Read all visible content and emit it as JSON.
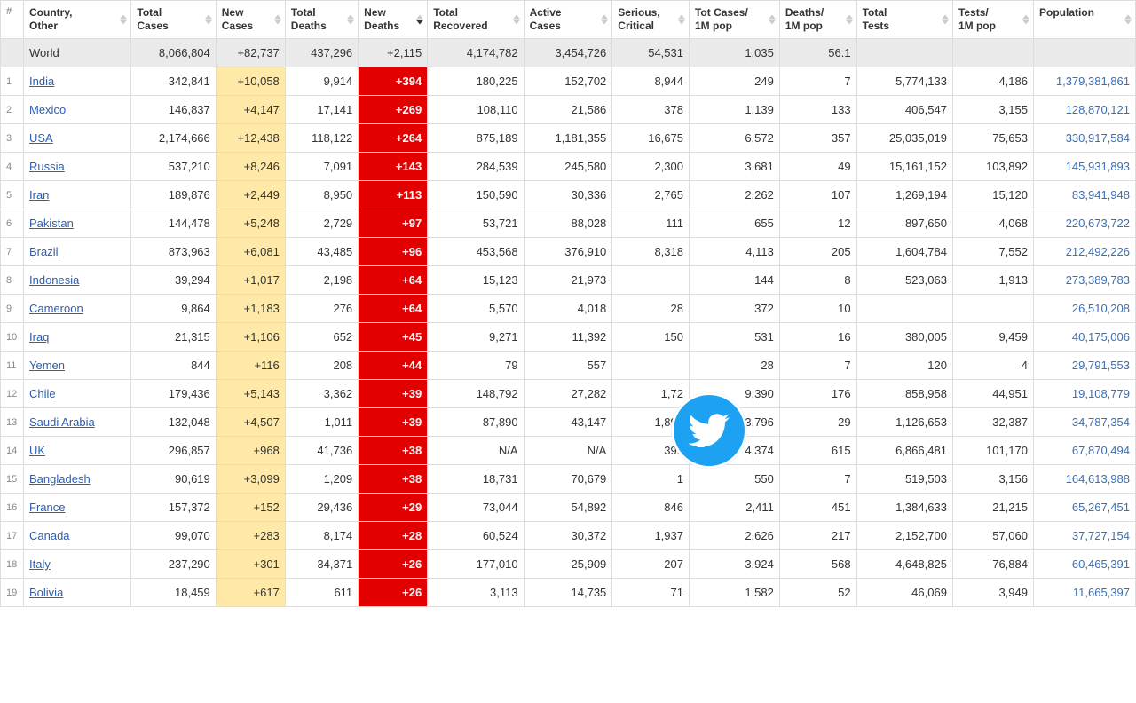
{
  "columns": {
    "idx": "#",
    "country": "Country,\nOther",
    "totalCases": "Total\nCases",
    "newCases": "New\nCases",
    "totalDeaths": "Total\nDeaths",
    "newDeaths": "New\nDeaths",
    "totalRecovered": "Total\nRecovered",
    "activeCases": "Active\nCases",
    "serious": "Serious,\nCritical",
    "casesPer1M": "Tot Cases/\n1M pop",
    "deathsPer1M": "Deaths/\n1M pop",
    "totalTests": "Total\nTests",
    "testsPer1M": "Tests/\n1M pop",
    "population": "Population"
  },
  "world": {
    "label": "World",
    "totalCases": "8,066,804",
    "newCases": "+82,737",
    "totalDeaths": "437,296",
    "newDeaths": "+2,115",
    "totalRecovered": "4,174,782",
    "activeCases": "3,454,726",
    "serious": "54,531",
    "casesPer1M": "1,035",
    "deathsPer1M": "56.1",
    "totalTests": "",
    "testsPer1M": "",
    "population": ""
  },
  "rows": [
    {
      "idx": "1",
      "country": "India",
      "totalCases": "342,841",
      "newCases": "+10,058",
      "totalDeaths": "9,914",
      "newDeaths": "+394",
      "totalRecovered": "180,225",
      "activeCases": "152,702",
      "serious": "8,944",
      "casesPer1M": "249",
      "deathsPer1M": "7",
      "totalTests": "5,774,133",
      "testsPer1M": "4,186",
      "population": "1,379,381,861"
    },
    {
      "idx": "2",
      "country": "Mexico",
      "totalCases": "146,837",
      "newCases": "+4,147",
      "totalDeaths": "17,141",
      "newDeaths": "+269",
      "totalRecovered": "108,110",
      "activeCases": "21,586",
      "serious": "378",
      "casesPer1M": "1,139",
      "deathsPer1M": "133",
      "totalTests": "406,547",
      "testsPer1M": "3,155",
      "population": "128,870,121"
    },
    {
      "idx": "3",
      "country": "USA",
      "totalCases": "2,174,666",
      "newCases": "+12,438",
      "totalDeaths": "118,122",
      "newDeaths": "+264",
      "totalRecovered": "875,189",
      "activeCases": "1,181,355",
      "serious": "16,675",
      "casesPer1M": "6,572",
      "deathsPer1M": "357",
      "totalTests": "25,035,019",
      "testsPer1M": "75,653",
      "population": "330,917,584"
    },
    {
      "idx": "4",
      "country": "Russia",
      "totalCases": "537,210",
      "newCases": "+8,246",
      "totalDeaths": "7,091",
      "newDeaths": "+143",
      "totalRecovered": "284,539",
      "activeCases": "245,580",
      "serious": "2,300",
      "casesPer1M": "3,681",
      "deathsPer1M": "49",
      "totalTests": "15,161,152",
      "testsPer1M": "103,892",
      "population": "145,931,893"
    },
    {
      "idx": "5",
      "country": "Iran",
      "totalCases": "189,876",
      "newCases": "+2,449",
      "totalDeaths": "8,950",
      "newDeaths": "+113",
      "totalRecovered": "150,590",
      "activeCases": "30,336",
      "serious": "2,765",
      "casesPer1M": "2,262",
      "deathsPer1M": "107",
      "totalTests": "1,269,194",
      "testsPer1M": "15,120",
      "population": "83,941,948"
    },
    {
      "idx": "6",
      "country": "Pakistan",
      "totalCases": "144,478",
      "newCases": "+5,248",
      "totalDeaths": "2,729",
      "newDeaths": "+97",
      "totalRecovered": "53,721",
      "activeCases": "88,028",
      "serious": "111",
      "casesPer1M": "655",
      "deathsPer1M": "12",
      "totalTests": "897,650",
      "testsPer1M": "4,068",
      "population": "220,673,722"
    },
    {
      "idx": "7",
      "country": "Brazil",
      "totalCases": "873,963",
      "newCases": "+6,081",
      "totalDeaths": "43,485",
      "newDeaths": "+96",
      "totalRecovered": "453,568",
      "activeCases": "376,910",
      "serious": "8,318",
      "casesPer1M": "4,113",
      "deathsPer1M": "205",
      "totalTests": "1,604,784",
      "testsPer1M": "7,552",
      "population": "212,492,226"
    },
    {
      "idx": "8",
      "country": "Indonesia",
      "totalCases": "39,294",
      "newCases": "+1,017",
      "totalDeaths": "2,198",
      "newDeaths": "+64",
      "totalRecovered": "15,123",
      "activeCases": "21,973",
      "serious": "",
      "casesPer1M": "144",
      "deathsPer1M": "8",
      "totalTests": "523,063",
      "testsPer1M": "1,913",
      "population": "273,389,783"
    },
    {
      "idx": "9",
      "country": "Cameroon",
      "totalCases": "9,864",
      "newCases": "+1,183",
      "totalDeaths": "276",
      "newDeaths": "+64",
      "totalRecovered": "5,570",
      "activeCases": "4,018",
      "serious": "28",
      "casesPer1M": "372",
      "deathsPer1M": "10",
      "totalTests": "",
      "testsPer1M": "",
      "population": "26,510,208"
    },
    {
      "idx": "10",
      "country": "Iraq",
      "totalCases": "21,315",
      "newCases": "+1,106",
      "totalDeaths": "652",
      "newDeaths": "+45",
      "totalRecovered": "9,271",
      "activeCases": "11,392",
      "serious": "150",
      "casesPer1M": "531",
      "deathsPer1M": "16",
      "totalTests": "380,005",
      "testsPer1M": "9,459",
      "population": "40,175,006"
    },
    {
      "idx": "11",
      "country": "Yemen",
      "totalCases": "844",
      "newCases": "+116",
      "totalDeaths": "208",
      "newDeaths": "+44",
      "totalRecovered": "79",
      "activeCases": "557",
      "serious": "",
      "casesPer1M": "28",
      "deathsPer1M": "7",
      "totalTests": "120",
      "testsPer1M": "4",
      "population": "29,791,553"
    },
    {
      "idx": "12",
      "country": "Chile",
      "totalCases": "179,436",
      "newCases": "+5,143",
      "totalDeaths": "3,362",
      "newDeaths": "+39",
      "totalRecovered": "148,792",
      "activeCases": "27,282",
      "serious": "1,72",
      "casesPer1M": "9,390",
      "deathsPer1M": "176",
      "totalTests": "858,958",
      "testsPer1M": "44,951",
      "population": "19,108,779"
    },
    {
      "idx": "13",
      "country": "Saudi Arabia",
      "totalCases": "132,048",
      "newCases": "+4,507",
      "totalDeaths": "1,011",
      "newDeaths": "+39",
      "totalRecovered": "87,890",
      "activeCases": "43,147",
      "serious": "1,897",
      "casesPer1M": "3,796",
      "deathsPer1M": "29",
      "totalTests": "1,126,653",
      "testsPer1M": "32,387",
      "population": "34,787,354"
    },
    {
      "idx": "14",
      "country": "UK",
      "totalCases": "296,857",
      "newCases": "+968",
      "totalDeaths": "41,736",
      "newDeaths": "+38",
      "totalRecovered": "N/A",
      "activeCases": "N/A",
      "serious": "392",
      "casesPer1M": "4,374",
      "deathsPer1M": "615",
      "totalTests": "6,866,481",
      "testsPer1M": "101,170",
      "population": "67,870,494"
    },
    {
      "idx": "15",
      "country": "Bangladesh",
      "totalCases": "90,619",
      "newCases": "+3,099",
      "totalDeaths": "1,209",
      "newDeaths": "+38",
      "totalRecovered": "18,731",
      "activeCases": "70,679",
      "serious": "1",
      "casesPer1M": "550",
      "deathsPer1M": "7",
      "totalTests": "519,503",
      "testsPer1M": "3,156",
      "population": "164,613,988"
    },
    {
      "idx": "16",
      "country": "France",
      "totalCases": "157,372",
      "newCases": "+152",
      "totalDeaths": "29,436",
      "newDeaths": "+29",
      "totalRecovered": "73,044",
      "activeCases": "54,892",
      "serious": "846",
      "casesPer1M": "2,411",
      "deathsPer1M": "451",
      "totalTests": "1,384,633",
      "testsPer1M": "21,215",
      "population": "65,267,451"
    },
    {
      "idx": "17",
      "country": "Canada",
      "totalCases": "99,070",
      "newCases": "+283",
      "totalDeaths": "8,174",
      "newDeaths": "+28",
      "totalRecovered": "60,524",
      "activeCases": "30,372",
      "serious": "1,937",
      "casesPer1M": "2,626",
      "deathsPer1M": "217",
      "totalTests": "2,152,700",
      "testsPer1M": "57,060",
      "population": "37,727,154"
    },
    {
      "idx": "18",
      "country": "Italy",
      "totalCases": "237,290",
      "newCases": "+301",
      "totalDeaths": "34,371",
      "newDeaths": "+26",
      "totalRecovered": "177,010",
      "activeCases": "25,909",
      "serious": "207",
      "casesPer1M": "3,924",
      "deathsPer1M": "568",
      "totalTests": "4,648,825",
      "testsPer1M": "76,884",
      "population": "60,465,391"
    },
    {
      "idx": "19",
      "country": "Bolivia",
      "totalCases": "18,459",
      "newCases": "+617",
      "totalDeaths": "611",
      "newDeaths": "+26",
      "totalRecovered": "3,113",
      "activeCases": "14,735",
      "serious": "71",
      "casesPer1M": "1,582",
      "deathsPer1M": "52",
      "totalTests": "46,069",
      "testsPer1M": "3,949",
      "population": "11,665,397"
    }
  ],
  "highlight": {
    "newCasesCol": "hl-yellow",
    "newDeathsCol": "hl-red"
  },
  "colWidths": {
    "idx": 24,
    "country": 112,
    "totalCases": 88,
    "newCases": 72,
    "totalDeaths": 76,
    "newDeaths": 72,
    "totalRecovered": 100,
    "activeCases": 92,
    "serious": 80,
    "casesPer1M": 94,
    "deathsPer1M": 80,
    "totalTests": 100,
    "testsPer1M": 84,
    "population": 106
  },
  "sortedDesc": "newDeaths"
}
